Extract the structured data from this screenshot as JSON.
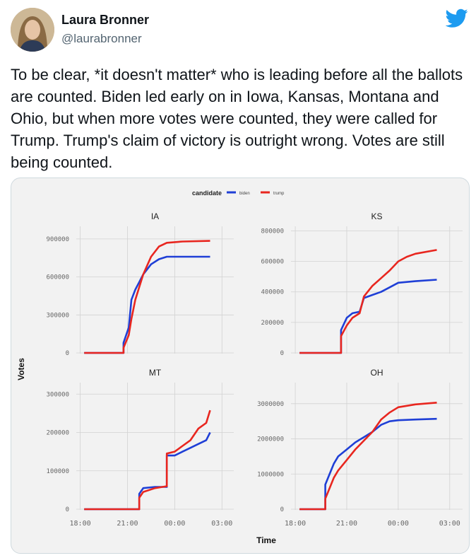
{
  "tweet": {
    "author_name": "Laura Bronner",
    "author_handle": "@laurabronner",
    "text": "To be clear, *it doesn't matter* who is leading before all the ballots are counted. Biden led early on in Iowa, Kansas, Montana and Ohio, but when more votes were counted, they were called for Trump. Trump's claim of victory is outright wrong. Votes are still being counted."
  },
  "icons": {
    "logo": "twitter-bird-icon",
    "avatar": "profile-photo"
  },
  "colors": {
    "biden": "#1f3fd6",
    "trump": "#e8261f",
    "twitter_blue": "#1d9bf0"
  },
  "chart_data": {
    "type": "line",
    "legend_title": "candidate",
    "legend": [
      "biden",
      "trump"
    ],
    "legend_position": "top",
    "xlabel": "Time",
    "ylabel": "Votes",
    "x_ticks": [
      "18:00",
      "21:00",
      "00:00",
      "03:00"
    ],
    "grid": true,
    "panels": [
      {
        "title": "IA",
        "y_ticks": [
          "0",
          "300000",
          "600000",
          "900000"
        ],
        "y_tick_values": [
          0,
          300000,
          600000,
          900000
        ],
        "ylim": [
          0,
          1000000
        ],
        "series": [
          {
            "name": "biden",
            "points": [
              [
                "18:15",
                0
              ],
              [
                "20:45",
                0
              ],
              [
                "20:45",
                80000
              ],
              [
                "21:05",
                200000
              ],
              [
                "21:15",
                420000
              ],
              [
                "21:30",
                500000
              ],
              [
                "21:45",
                560000
              ],
              [
                "22:00",
                620000
              ],
              [
                "22:30",
                700000
              ],
              [
                "23:00",
                740000
              ],
              [
                "23:30",
                760000
              ],
              [
                "02:15",
                760000
              ]
            ]
          },
          {
            "name": "trump",
            "points": [
              [
                "18:15",
                0
              ],
              [
                "20:45",
                0
              ],
              [
                "20:45",
                40000
              ],
              [
                "21:05",
                140000
              ],
              [
                "21:15",
                270000
              ],
              [
                "21:30",
                420000
              ],
              [
                "21:45",
                520000
              ],
              [
                "22:00",
                620000
              ],
              [
                "22:30",
                760000
              ],
              [
                "23:00",
                840000
              ],
              [
                "23:30",
                870000
              ],
              [
                "00:30",
                880000
              ],
              [
                "02:15",
                885000
              ]
            ]
          }
        ]
      },
      {
        "title": "KS",
        "y_ticks": [
          "0",
          "200000",
          "400000",
          "600000",
          "800000"
        ],
        "y_tick_values": [
          0,
          200000,
          400000,
          600000,
          800000
        ],
        "ylim": [
          0,
          830000
        ],
        "series": [
          {
            "name": "biden",
            "points": [
              [
                "18:15",
                0
              ],
              [
                "20:40",
                0
              ],
              [
                "20:40",
                150000
              ],
              [
                "21:00",
                230000
              ],
              [
                "21:20",
                260000
              ],
              [
                "21:45",
                270000
              ],
              [
                "22:00",
                360000
              ],
              [
                "22:30",
                380000
              ],
              [
                "23:00",
                400000
              ],
              [
                "23:30",
                430000
              ],
              [
                "00:00",
                460000
              ],
              [
                "01:00",
                470000
              ],
              [
                "02:15",
                480000
              ]
            ]
          },
          {
            "name": "trump",
            "points": [
              [
                "18:15",
                0
              ],
              [
                "20:40",
                0
              ],
              [
                "20:40",
                110000
              ],
              [
                "21:00",
                180000
              ],
              [
                "21:20",
                230000
              ],
              [
                "21:45",
                260000
              ],
              [
                "22:00",
                370000
              ],
              [
                "22:30",
                440000
              ],
              [
                "23:00",
                490000
              ],
              [
                "23:30",
                540000
              ],
              [
                "00:00",
                600000
              ],
              [
                "00:30",
                630000
              ],
              [
                "01:00",
                650000
              ],
              [
                "02:15",
                675000
              ]
            ]
          }
        ]
      },
      {
        "title": "MT",
        "y_ticks": [
          "0",
          "100000",
          "200000",
          "300000"
        ],
        "y_tick_values": [
          0,
          100000,
          200000,
          300000
        ],
        "ylim": [
          0,
          330000
        ],
        "series": [
          {
            "name": "biden",
            "points": [
              [
                "18:15",
                0
              ],
              [
                "21:45",
                0
              ],
              [
                "21:45",
                40000
              ],
              [
                "22:00",
                55000
              ],
              [
                "22:45",
                58000
              ],
              [
                "23:30",
                58000
              ],
              [
                "23:30",
                140000
              ],
              [
                "00:00",
                140000
              ],
              [
                "00:30",
                150000
              ],
              [
                "01:00",
                160000
              ],
              [
                "01:30",
                170000
              ],
              [
                "02:00",
                180000
              ],
              [
                "02:15",
                200000
              ]
            ]
          },
          {
            "name": "trump",
            "points": [
              [
                "18:15",
                0
              ],
              [
                "21:45",
                0
              ],
              [
                "21:45",
                30000
              ],
              [
                "22:00",
                45000
              ],
              [
                "22:45",
                55000
              ],
              [
                "23:30",
                60000
              ],
              [
                "23:30",
                145000
              ],
              [
                "00:00",
                150000
              ],
              [
                "00:30",
                165000
              ],
              [
                "01:00",
                180000
              ],
              [
                "01:30",
                210000
              ],
              [
                "02:00",
                225000
              ],
              [
                "02:15",
                258000
              ]
            ]
          }
        ]
      },
      {
        "title": "OH",
        "y_ticks": [
          "0",
          "1000000",
          "2000000",
          "3000000"
        ],
        "y_tick_values": [
          0,
          1000000,
          2000000,
          3000000
        ],
        "ylim": [
          0,
          3600000
        ],
        "series": [
          {
            "name": "biden",
            "points": [
              [
                "18:15",
                0
              ],
              [
                "19:45",
                0
              ],
              [
                "19:45",
                700000
              ],
              [
                "20:00",
                1000000
              ],
              [
                "20:15",
                1300000
              ],
              [
                "20:30",
                1500000
              ],
              [
                "21:00",
                1700000
              ],
              [
                "21:30",
                1900000
              ],
              [
                "22:00",
                2050000
              ],
              [
                "22:30",
                2200000
              ],
              [
                "23:00",
                2400000
              ],
              [
                "23:30",
                2500000
              ],
              [
                "00:00",
                2530000
              ],
              [
                "01:00",
                2550000
              ],
              [
                "02:15",
                2570000
              ]
            ]
          },
          {
            "name": "trump",
            "points": [
              [
                "18:15",
                0
              ],
              [
                "19:45",
                0
              ],
              [
                "19:45",
                300000
              ],
              [
                "20:00",
                600000
              ],
              [
                "20:15",
                900000
              ],
              [
                "20:30",
                1100000
              ],
              [
                "21:00",
                1400000
              ],
              [
                "21:30",
                1700000
              ],
              [
                "22:00",
                1950000
              ],
              [
                "22:30",
                2200000
              ],
              [
                "23:00",
                2550000
              ],
              [
                "23:30",
                2750000
              ],
              [
                "00:00",
                2900000
              ],
              [
                "01:00",
                2980000
              ],
              [
                "02:15",
                3030000
              ]
            ]
          }
        ]
      }
    ]
  }
}
